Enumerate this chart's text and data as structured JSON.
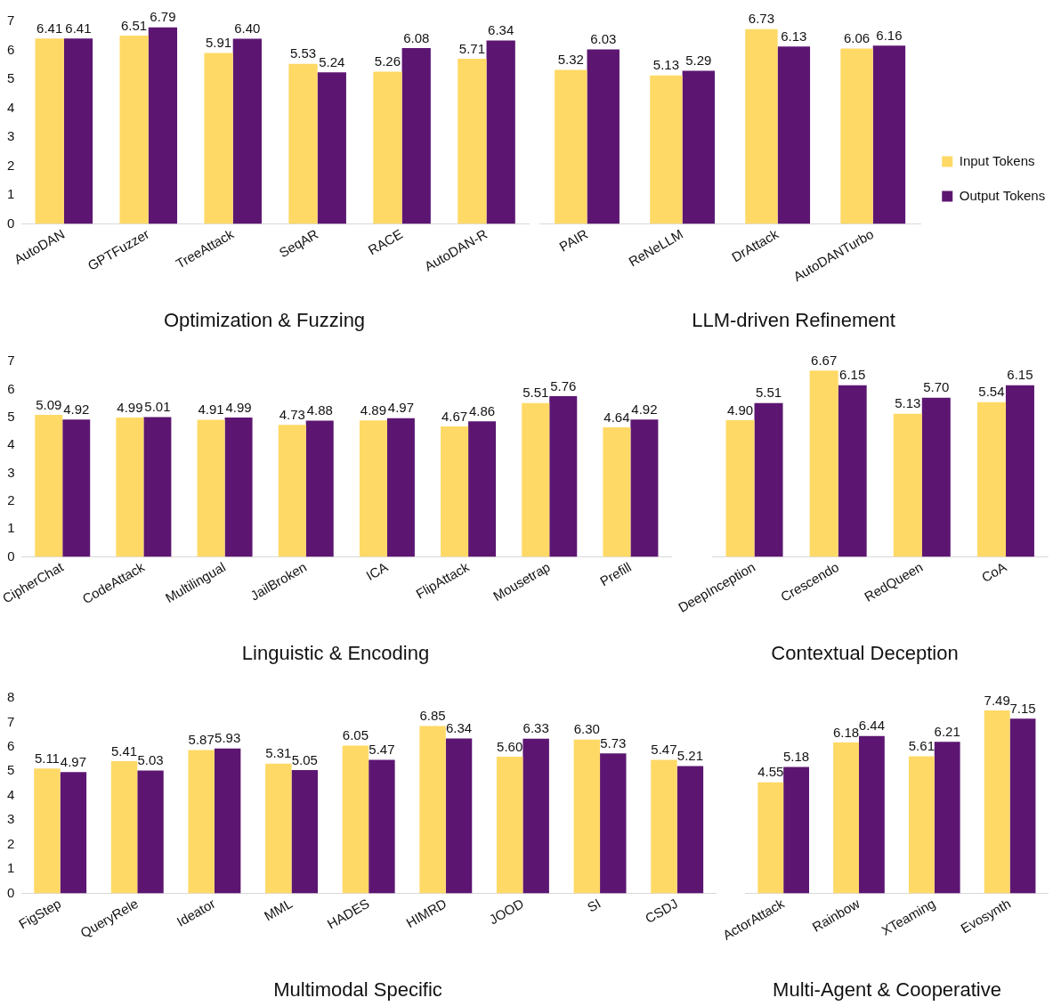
{
  "chart_data": [
    {
      "type": "bar",
      "title": "Optimization & Fuzzing",
      "categories": [
        "AutoDAN",
        "GPTFuzzer",
        "TreeAttack",
        "SeqAR",
        "RACE",
        "AutoDAN-R"
      ],
      "ylim": [
        0,
        7
      ],
      "yticks": [
        0,
        1,
        2,
        3,
        4,
        5,
        6,
        7
      ],
      "series": [
        {
          "color": "#ffd966",
          "values": [
            6.41,
            6.51,
            5.91,
            5.53,
            5.26,
            5.71
          ],
          "value_labels": [
            "6.41",
            "6.51",
            "5.91",
            "5.53",
            "5.26",
            "5.71"
          ]
        },
        {
          "color": "#5c1672",
          "values": [
            6.41,
            6.79,
            6.4,
            5.24,
            6.08,
            6.34
          ],
          "value_labels": [
            "6.41",
            "6.79",
            "6.40",
            "5.24",
            "6.08",
            "6.34"
          ]
        }
      ]
    },
    {
      "type": "bar",
      "title": "LLM-driven Refinement",
      "categories": [
        "PAIR",
        "ReNeLLM",
        "DrAttack",
        "AutoDANTurbo"
      ],
      "ylim": [
        0,
        7
      ],
      "tick_labels": "x",
      "legend": "right",
      "series": [
        {
          "name": "Input Tokens",
          "color": "#ffd966",
          "values": [
            5.32,
            5.13,
            6.73,
            6.06
          ],
          "value_labels": [
            "5.32",
            "5.13",
            "6.73",
            "6.06"
          ]
        },
        {
          "name": "Output Tokens",
          "color": "#5c1672",
          "values": [
            6.03,
            5.29,
            6.13,
            6.16
          ],
          "value_labels": [
            "6.03",
            "5.29",
            "6.13",
            "6.16"
          ]
        }
      ]
    },
    {
      "type": "bar",
      "title": "Linguistic & Encoding",
      "categories": [
        "CipherChat",
        "CodeAttack",
        "Multilingual",
        "JailBroken",
        "ICA",
        "FlipAttack",
        "Mousetrap",
        "Prefill"
      ],
      "ylim": [
        0,
        7
      ],
      "yticks": [
        0,
        1,
        2,
        3,
        4,
        5,
        6,
        7
      ],
      "series": [
        {
          "color": "#ffd966",
          "values": [
            5.09,
            4.99,
            4.91,
            4.73,
            4.89,
            4.67,
            5.51,
            4.64
          ],
          "value_labels": [
            "5.09",
            "4.99",
            "4.91",
            "4.73",
            "4.89",
            "4.67",
            "5.51",
            "4.64"
          ]
        },
        {
          "color": "#5c1672",
          "values": [
            4.92,
            5.01,
            4.99,
            4.88,
            4.97,
            4.86,
            5.76,
            4.92
          ],
          "value_labels": [
            "4.92",
            "5.01",
            "4.99",
            "4.88",
            "4.97",
            "4.86",
            "5.76",
            "4.92"
          ]
        }
      ]
    },
    {
      "type": "bar",
      "title": "Contextual Deception",
      "categories": [
        "DeepInception",
        "Crescendo",
        "RedQueen",
        "CoA"
      ],
      "ylim": [
        0,
        7
      ],
      "tick_labels": "x",
      "series": [
        {
          "color": "#ffd966",
          "values": [
            4.9,
            6.67,
            5.13,
            5.54
          ],
          "value_labels": [
            "4.90",
            "6.67",
            "5.13",
            "5.54"
          ]
        },
        {
          "color": "#5c1672",
          "values": [
            5.51,
            6.15,
            5.7,
            6.15
          ],
          "value_labels": [
            "5.51",
            "6.15",
            "5.70",
            "6.15"
          ]
        }
      ]
    },
    {
      "type": "bar",
      "title": "Multimodal Specific",
      "categories": [
        "FigStep",
        "QueryRele",
        "Ideator",
        "MML",
        "HADES",
        "HIMRD",
        "JOOD",
        "SI",
        "CSDJ"
      ],
      "ylim": [
        0,
        8
      ],
      "yticks": [
        0,
        1,
        2,
        3,
        4,
        5,
        6,
        7,
        8
      ],
      "series": [
        {
          "color": "#ffd966",
          "values": [
            5.11,
            5.41,
            5.87,
            5.31,
            6.05,
            6.85,
            5.6,
            6.3,
            5.47
          ],
          "value_labels": [
            "5.11",
            "5.41",
            "5.87",
            "5.31",
            "6.05",
            "6.85",
            "5.60",
            "6.30",
            "5.47"
          ]
        },
        {
          "color": "#5c1672",
          "values": [
            4.97,
            5.03,
            5.93,
            5.05,
            5.47,
            6.34,
            6.33,
            5.73,
            5.21
          ],
          "value_labels": [
            "4.97",
            "5.03",
            "5.93",
            "5.05",
            "5.47",
            "6.34",
            "6.33",
            "5.73",
            "5.21"
          ]
        }
      ]
    },
    {
      "type": "bar",
      "title": "Multi-Agent & Cooperative",
      "categories": [
        "ActorAttack",
        "Rainbow",
        "XTeaming",
        "Evosynth"
      ],
      "ylim": [
        0,
        8
      ],
      "tick_labels": "x",
      "series": [
        {
          "color": "#ffd966",
          "values": [
            4.55,
            6.18,
            5.61,
            7.49
          ],
          "value_labels": [
            "4.55",
            "6.18",
            "5.61",
            "7.49"
          ]
        },
        {
          "color": "#5c1672",
          "values": [
            5.18,
            6.44,
            6.21,
            7.15
          ],
          "value_labels": [
            "5.18",
            "6.44",
            "6.21",
            "7.15"
          ]
        }
      ]
    }
  ]
}
